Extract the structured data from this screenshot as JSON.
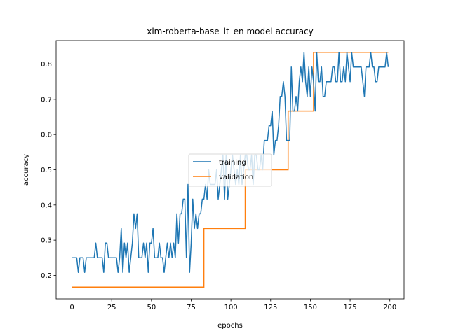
{
  "chart_data": {
    "type": "line",
    "title": "xlm-roberta-base_lt_en model accuracy",
    "xlabel": "epochs",
    "ylabel": "accuracy",
    "xlim": [
      -9.95,
      208.95
    ],
    "ylim": [
      0.1333,
      0.8667
    ],
    "xticks": [
      0,
      25,
      50,
      75,
      100,
      125,
      150,
      175,
      200
    ],
    "yticks": [
      0.2,
      0.3,
      0.4,
      0.5,
      0.6,
      0.7,
      0.8
    ],
    "legend": {
      "placement": "center",
      "entries": [
        "training",
        "validation"
      ]
    },
    "colors": {
      "training": "#1f77b4",
      "validation": "#ff7f0e"
    },
    "grid": false,
    "series": [
      {
        "name": "training",
        "values": [
          0.25,
          0.25,
          0.25,
          0.25,
          0.2083,
          0.25,
          0.25,
          0.25,
          0.2083,
          0.25,
          0.25,
          0.25,
          0.25,
          0.25,
          0.25,
          0.2917,
          0.25,
          0.25,
          0.25,
          0.25,
          0.2083,
          0.2917,
          0.2917,
          0.25,
          0.25,
          0.25,
          0.25,
          0.25,
          0.25,
          0.2083,
          0.25,
          0.3333,
          0.2083,
          0.2917,
          0.25,
          0.2917,
          0.2083,
          0.25,
          0.2917,
          0.375,
          0.3333,
          0.375,
          0.25,
          0.25,
          0.25,
          0.2917,
          0.25,
          0.2917,
          0.2083,
          0.2917,
          0.2917,
          0.3333,
          0.25,
          0.25,
          0.25,
          0.2917,
          0.25,
          0.25,
          0.2083,
          0.25,
          0.2917,
          0.25,
          0.2917,
          0.25,
          0.2917,
          0.25,
          0.375,
          0.2917,
          0.375,
          0.375,
          0.4167,
          0.4167,
          0.25,
          0.4583,
          0.2083,
          0.2917,
          0.4167,
          0.3333,
          0.375,
          0.3333,
          0.375,
          0.375,
          0.4167,
          0.4167,
          0.4583,
          0.4167,
          0.5,
          0.4583,
          0.4583,
          0.4583,
          0.4583,
          0.5,
          0.4167,
          0.4583,
          0.5,
          0.5417,
          0.4167,
          0.5417,
          0.4167,
          0.4583,
          0.5,
          0.5417,
          0.5,
          0.4583,
          0.5,
          0.4583,
          0.5417,
          0.4583,
          0.5,
          0.5417,
          0.5417,
          0.5,
          0.5,
          0.5417,
          0.4583,
          0.5417,
          0.5417,
          0.5,
          0.5,
          0.5417,
          0.5,
          0.5833,
          0.5833,
          0.5833,
          0.625,
          0.625,
          0.6667,
          0.5417,
          0.5833,
          0.5833,
          0.625,
          0.7083,
          0.7083,
          0.75,
          0.7083,
          0.5833,
          0.5833,
          0.5833,
          0.7917,
          0.6667,
          0.6667,
          0.7083,
          0.6667,
          0.75,
          0.7917,
          0.75,
          0.8333,
          0.75,
          0.7083,
          0.7917,
          0.7083,
          0.7917,
          0.75,
          0.6667,
          0.8333,
          0.75,
          0.75,
          0.7917,
          0.7083,
          0.7083,
          0.75,
          0.75,
          0.75,
          0.75,
          0.7917,
          0.7917,
          0.75,
          0.75,
          0.8333,
          0.75,
          0.75,
          0.7917,
          0.75,
          0.8333,
          0.7917,
          0.75,
          0.8333,
          0.7917,
          0.7917,
          0.7917,
          0.7917,
          0.7917,
          0.7917,
          0.75,
          0.7083,
          0.7917,
          0.7917,
          0.7917,
          0.8333,
          0.7917,
          0.7917,
          0.75,
          0.75,
          0.7917,
          0.7917,
          0.7917,
          0.7917,
          0.7917,
          0.8333,
          0.7917
        ]
      },
      {
        "name": "validation",
        "steps": [
          {
            "from": 0,
            "to": 83,
            "value": 0.1667
          },
          {
            "from": 83,
            "to": 109,
            "value": 0.3333
          },
          {
            "from": 109,
            "to": 136,
            "value": 0.5
          },
          {
            "from": 136,
            "to": 152,
            "value": 0.6667
          },
          {
            "from": 152,
            "to": 199,
            "value": 0.8333
          }
        ]
      }
    ]
  }
}
